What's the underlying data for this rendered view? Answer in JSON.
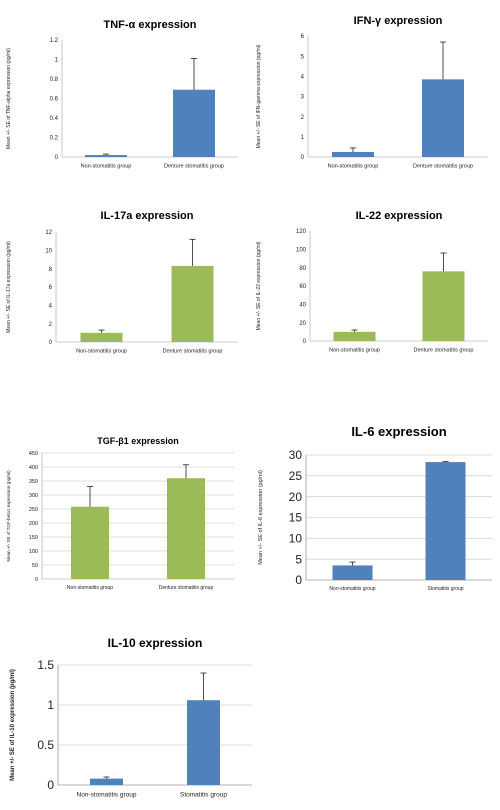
{
  "chart_data": [
    {
      "type": "bar",
      "title": "TNF-α expression",
      "ylabel": "Mean +/- SE of TNF-alpha expression (pg/ml)",
      "categories": [
        "Non-stomatitis group",
        "Denture stomatitis group"
      ],
      "values": [
        0.02,
        0.69
      ],
      "errors": [
        0.01,
        0.32
      ],
      "ylim": [
        0,
        1.2
      ],
      "yticks": [
        "0",
        "0.2",
        "0.4",
        "0.6",
        "0.8",
        "1",
        "1.2"
      ],
      "color": "#4f81bd",
      "grid": false
    },
    {
      "type": "bar",
      "title": "IFN-γ expression",
      "ylabel": "Mean +/- SE of IFN-gamma expression (pg/ml)",
      "categories": [
        "Non-stomatitis group",
        "Denture stomatitis group"
      ],
      "values": [
        0.25,
        3.85
      ],
      "errors": [
        0.2,
        1.85
      ],
      "ylim": [
        0,
        6
      ],
      "yticks": [
        "0",
        "1",
        "2",
        "3",
        "4",
        "5",
        "6"
      ],
      "color": "#4f81bd",
      "grid": false
    },
    {
      "type": "bar",
      "title": "IL-17a expression",
      "ylabel": "Mean +/- SE of IL-17a expression (pg/ml)",
      "categories": [
        "Non-stomatitis group",
        "Denture stomatitis group"
      ],
      "values": [
        1.0,
        8.3
      ],
      "errors": [
        0.3,
        2.9
      ],
      "ylim": [
        0,
        12
      ],
      "yticks": [
        "0",
        "2",
        "4",
        "6",
        "8",
        "10",
        "12"
      ],
      "color": "#9bbb59",
      "grid": false
    },
    {
      "type": "bar",
      "title": "IL-22 expression",
      "ylabel": "Mean +/- SE of IL-22 expression (pg/ml)",
      "categories": [
        "Non-stomatitis group",
        "Denture stomatitis group"
      ],
      "values": [
        10,
        76
      ],
      "errors": [
        2,
        20
      ],
      "ylim": [
        0,
        120
      ],
      "yticks": [
        "0",
        "20",
        "40",
        "60",
        "80",
        "100",
        "120"
      ],
      "color": "#9bbb59",
      "grid": false
    },
    {
      "type": "bar",
      "title": "TGF-β1 expression",
      "ylabel": "Mean +/- SE of TGF-beta1 expression (pg/ml)",
      "categories": [
        "Non-stomatitis group",
        "Denture stomatitis group"
      ],
      "values": [
        258,
        360
      ],
      "errors": [
        72,
        48
      ],
      "ylim": [
        0,
        450
      ],
      "yticks": [
        "0",
        "50",
        "100",
        "150",
        "200",
        "250",
        "300",
        "350",
        "400",
        "450"
      ],
      "color": "#9bbb59",
      "grid": true
    },
    {
      "type": "bar",
      "title": "IL-6 expression",
      "ylabel": "Mean +/- SE of IL-6 expression (pg/ml)",
      "categories": [
        "Non-stomatitis group",
        "Stomatitis group"
      ],
      "values": [
        3.5,
        28.3
      ],
      "errors": [
        0.8,
        0.15
      ],
      "ylim": [
        0,
        30
      ],
      "yticks": [
        "0",
        "5",
        "10",
        "15",
        "20",
        "25",
        "30"
      ],
      "color": "#4f81bd",
      "grid": true
    },
    {
      "type": "bar",
      "title": "IL-10 expression",
      "ylabel": "Mean +/- SE of IL-10 expression (pg/ml)",
      "categories": [
        "Non-stomatitis group",
        "Stomatitis group"
      ],
      "values": [
        0.08,
        1.06
      ],
      "errors": [
        0.02,
        0.34
      ],
      "ylim": [
        0,
        1.5
      ],
      "yticks": [
        "0",
        "0.5",
        "1",
        "1.5"
      ],
      "color": "#4f81bd",
      "grid": true
    }
  ]
}
